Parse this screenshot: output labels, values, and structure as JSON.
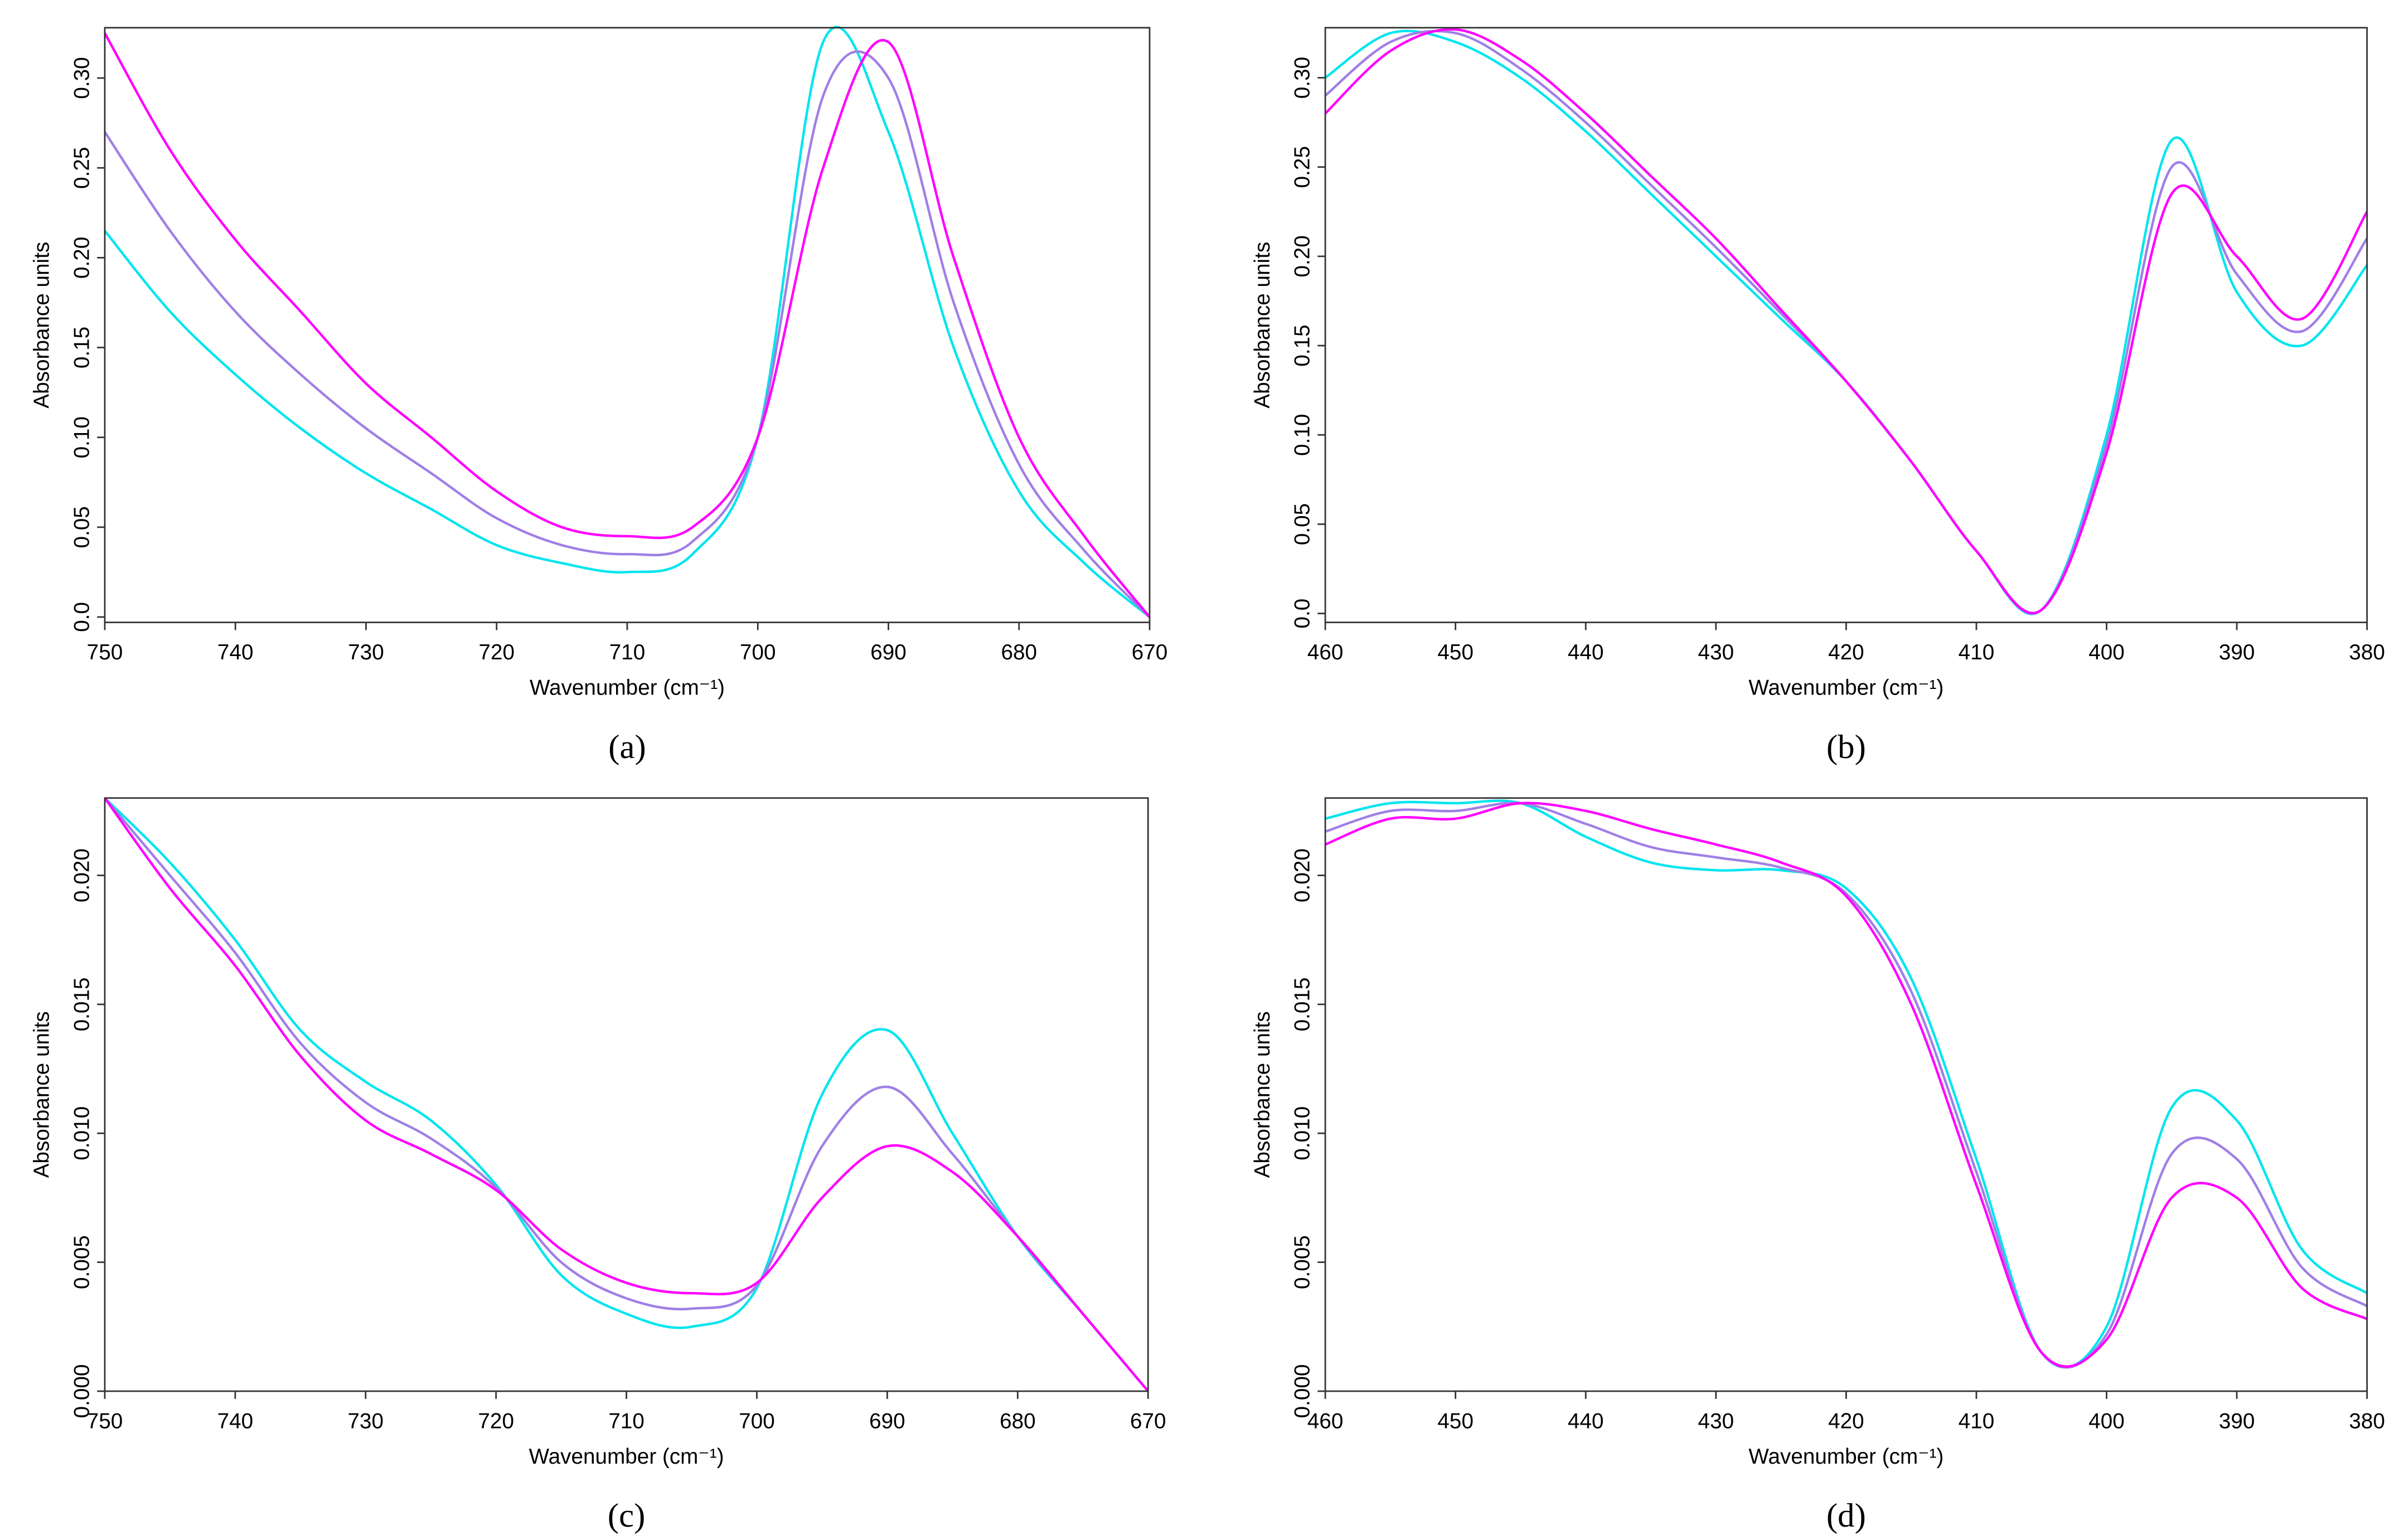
{
  "chart_data": [
    {
      "type": "line",
      "title": "(a)",
      "x_label": "Wavenumber (cm⁻¹)",
      "y_label": "Absorbance units",
      "x": [
        750,
        745,
        740,
        735,
        730,
        725,
        720,
        715,
        710,
        705,
        700,
        695,
        690,
        685,
        680,
        675,
        670
      ],
      "xlim": [
        750,
        670
      ],
      "xticks": [
        750,
        740,
        730,
        720,
        710,
        700,
        690,
        680,
        670
      ],
      "ylim": [
        -0.003,
        0.328
      ],
      "yticks": [
        {
          "value": 0,
          "label": "0.0"
        },
        0.05,
        {
          "value": 0.1,
          "label": "0.10"
        },
        0.15,
        {
          "value": 0.2,
          "label": "0.20"
        },
        0.25,
        {
          "value": 0.3,
          "label": "0.30"
        }
      ],
      "series": [
        {
          "color": "#00e5ee",
          "values": [
            0.215,
            0.17,
            0.135,
            0.105,
            0.08,
            0.06,
            0.04,
            0.03,
            0.025,
            0.035,
            0.1,
            0.32,
            0.27,
            0.15,
            0.07,
            0.03,
            0
          ]
        },
        {
          "color": "#a07fe6",
          "values": [
            0.27,
            0.215,
            0.17,
            0.135,
            0.105,
            0.08,
            0.055,
            0.04,
            0.035,
            0.042,
            0.1,
            0.29,
            0.3,
            0.175,
            0.085,
            0.037,
            0
          ]
        },
        {
          "color": "#ff00ff",
          "values": [
            0.325,
            0.26,
            0.21,
            0.17,
            0.13,
            0.1,
            0.07,
            0.05,
            0.045,
            0.05,
            0.1,
            0.25,
            0.32,
            0.2,
            0.1,
            0.045,
            0
          ]
        }
      ]
    },
    {
      "type": "line",
      "title": "(b)",
      "x_label": "Wavenumber (cm⁻¹)",
      "y_label": "Absorbance units",
      "x": [
        460,
        455,
        450,
        445,
        440,
        435,
        430,
        425,
        420,
        415,
        410,
        405,
        400,
        395,
        390,
        385,
        380
      ],
      "xlim": [
        460,
        380
      ],
      "xticks": [
        460,
        450,
        440,
        430,
        420,
        410,
        400,
        390,
        380
      ],
      "ylim": [
        -0.005,
        0.328
      ],
      "yticks": [
        {
          "value": 0,
          "label": "0.0"
        },
        0.05,
        {
          "value": 0.1,
          "label": "0.10"
        },
        0.15,
        {
          "value": 0.2,
          "label": "0.20"
        },
        0.25,
        {
          "value": 0.3,
          "label": "0.30"
        }
      ],
      "series": [
        {
          "color": "#00e5ee",
          "values": [
            0.3,
            0.325,
            0.32,
            0.3,
            0.27,
            0.235,
            0.2,
            0.165,
            0.13,
            0.085,
            0.035,
            0.002,
            0.1,
            0.265,
            0.18,
            0.15,
            0.195
          ]
        },
        {
          "color": "#a07fe6",
          "values": [
            0.29,
            0.32,
            0.325,
            0.305,
            0.275,
            0.24,
            0.205,
            0.168,
            0.13,
            0.085,
            0.035,
            0.002,
            0.095,
            0.25,
            0.19,
            0.158,
            0.21
          ]
        },
        {
          "color": "#ff00ff",
          "values": [
            0.28,
            0.315,
            0.327,
            0.31,
            0.28,
            0.245,
            0.21,
            0.17,
            0.13,
            0.085,
            0.035,
            0.002,
            0.09,
            0.235,
            0.2,
            0.165,
            0.225
          ]
        }
      ]
    },
    {
      "type": "line",
      "title": "(c)",
      "x_label": "Wavenumber (cm⁻¹)",
      "y_label": "Absorbance units",
      "x": [
        750,
        745,
        740,
        735,
        730,
        725,
        720,
        715,
        710,
        705,
        700,
        695,
        690,
        685,
        680,
        675,
        670
      ],
      "xlim": [
        750,
        670
      ],
      "xticks": [
        750,
        740,
        730,
        720,
        710,
        700,
        690,
        680,
        670
      ],
      "ylim": [
        0,
        0.023
      ],
      "yticks": [
        {
          "value": 0,
          "label": "0.000"
        },
        0.005,
        {
          "value": 0.01,
          "label": "0.010"
        },
        0.015,
        {
          "value": 0.02,
          "label": "0.020"
        }
      ],
      "series": [
        {
          "color": "#00e5ee",
          "values": [
            0.023,
            0.0205,
            0.0175,
            0.014,
            0.012,
            0.0105,
            0.008,
            0.0045,
            0.003,
            0.0025,
            0.004,
            0.0115,
            0.014,
            0.01,
            0.006,
            0.003,
            0
          ]
        },
        {
          "color": "#a07fe6",
          "values": [
            0.023,
            0.02,
            0.017,
            0.0135,
            0.0112,
            0.0098,
            0.0079,
            0.005,
            0.0036,
            0.0032,
            0.0041,
            0.0095,
            0.0118,
            0.0092,
            0.006,
            0.003,
            0
          ]
        },
        {
          "color": "#ff00ff",
          "values": [
            0.023,
            0.0195,
            0.0165,
            0.013,
            0.0105,
            0.0092,
            0.0078,
            0.0055,
            0.0042,
            0.0038,
            0.0042,
            0.0075,
            0.0095,
            0.0085,
            0.006,
            0.003,
            0
          ]
        }
      ]
    },
    {
      "type": "line",
      "title": "(d)",
      "x_label": "Wavenumber (cm⁻¹)",
      "y_label": "Absorbance units",
      "x": [
        460,
        455,
        450,
        445,
        440,
        435,
        430,
        425,
        420,
        415,
        410,
        405,
        400,
        395,
        390,
        385,
        380
      ],
      "xlim": [
        460,
        380
      ],
      "xticks": [
        460,
        450,
        440,
        430,
        420,
        410,
        400,
        390,
        380
      ],
      "ylim": [
        0,
        0.023
      ],
      "yticks": [
        {
          "value": 0,
          "label": "0.000"
        },
        0.005,
        {
          "value": 0.01,
          "label": "0.010"
        },
        0.015,
        {
          "value": 0.02,
          "label": "0.020"
        }
      ],
      "series": [
        {
          "color": "#00e5ee",
          "values": [
            0.0222,
            0.0228,
            0.0228,
            0.0228,
            0.0215,
            0.0205,
            0.0202,
            0.0202,
            0.0195,
            0.016,
            0.009,
            0.0015,
            0.0025,
            0.011,
            0.0105,
            0.0055,
            0.0038
          ]
        },
        {
          "color": "#a07fe6",
          "values": [
            0.0217,
            0.0225,
            0.0225,
            0.0228,
            0.022,
            0.0211,
            0.0207,
            0.0203,
            0.0193,
            0.0155,
            0.0085,
            0.0015,
            0.0022,
            0.0092,
            0.009,
            0.0048,
            0.0033
          ]
        },
        {
          "color": "#ff00ff",
          "values": [
            0.0212,
            0.0222,
            0.0222,
            0.0228,
            0.0225,
            0.0218,
            0.0212,
            0.0205,
            0.0192,
            0.015,
            0.008,
            0.0015,
            0.002,
            0.0075,
            0.0075,
            0.004,
            0.0028
          ]
        }
      ]
    }
  ]
}
